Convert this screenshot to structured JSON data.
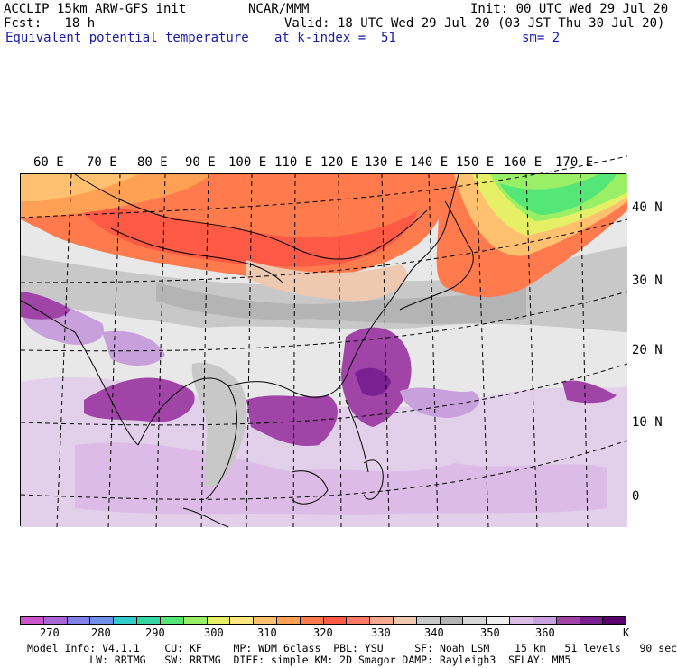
{
  "header": {
    "left_line1": "ACCLIP 15km ARW-GFS init",
    "center_line1": "NCAR/MMM",
    "right_line1": "Init: 00 UTC Wed 29 Jul 20",
    "left_line2": "Fcst:   18 h",
    "right_line2": "Valid: 18 UTC Wed 29 Jul 20 (03 JST Thu 30 Jul 20)",
    "field_name": "Equivalent potential temperature",
    "level": "at k-index =  51",
    "smoothing": "sm= 2"
  },
  "map": {
    "lon_labels": [
      "60 E",
      "70 E",
      "80 E",
      "90 E",
      "100 E",
      "110 E",
      "120 E",
      "130 E",
      "140 E",
      "150 E",
      "160 E",
      "170 E"
    ],
    "lat_labels": [
      "40 N",
      "30 N",
      "20 N",
      "10 N",
      "0"
    ]
  },
  "colorbar": {
    "colors": [
      "#cc55cc",
      "#a966d6",
      "#8080e6",
      "#6f8fe8",
      "#33cccc",
      "#33d6a0",
      "#55e678",
      "#99f066",
      "#e6f066",
      "#ffe680",
      "#ffc070",
      "#ffa055",
      "#ff7a4d",
      "#ff5a45",
      "#ff7a66",
      "#f5a890",
      "#efc8b0",
      "#c8c8c8",
      "#b4b4b4",
      "#d6d6d6",
      "#efefef",
      "#dcbce6",
      "#c8a0dc",
      "#a044a8",
      "#7a2090",
      "#5a006e"
    ],
    "labels": [
      "270",
      "280",
      "290",
      "300",
      "310",
      "320",
      "330",
      "340",
      "350",
      "360"
    ],
    "unit": "K"
  },
  "footer": {
    "line1": "Model Info: V4.1.1    CU: KF     MP: WDM 6class  PBL: YSU     SF: Noah LSM    15 km   51 levels   90 sec",
    "line2": "          LW: RRTMG   SW: RRTMG  DIFF: simple KM: 2D Smagor DAMP: Rayleigh3  SFLAY: MM5"
  }
}
